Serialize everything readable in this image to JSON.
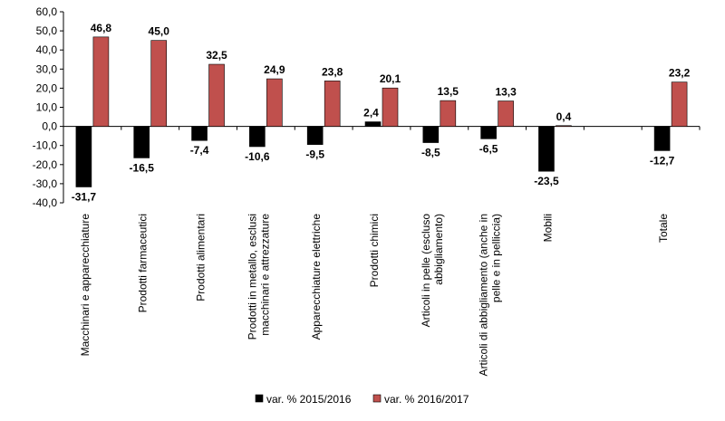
{
  "chart_data": {
    "type": "bar",
    "title": "",
    "xlabel": "",
    "ylabel": "",
    "ylim": [
      -40,
      60
    ],
    "yticks": [
      "60,0",
      "50,0",
      "40,0",
      "30,0",
      "20,0",
      "10,0",
      "0,0",
      "-10,0",
      "-20,0",
      "-30,0",
      "-40,0"
    ],
    "grid": false,
    "legend_position": "bottom",
    "categories": [
      "Macchinari e apparecchiature",
      "Prodotti farmaceutici",
      "Prodotti alimentari",
      "Prodotti in metallo, esclusi macchinari e attrezzature",
      "Apparecchiature elettriche",
      "Prodotti chimici",
      "Articoli in pelle (escluso abbigliamento)",
      "Articoli di abbigliamento (anche in pelle e in pelliccia)",
      "Mobili",
      "",
      "Totale"
    ],
    "series": [
      {
        "name": "var. % 2015/2016",
        "color": "#000000",
        "values": [
          -31.7,
          -16.5,
          -7.4,
          -10.6,
          -9.5,
          2.4,
          -8.5,
          -6.5,
          -23.5,
          null,
          -12.7
        ],
        "labels": [
          "-31,7",
          "-16,5",
          "-7,4",
          "-10,6",
          "-9,5",
          "2,4",
          "-8,5",
          "-6,5",
          "-23,5",
          "",
          "-12,7"
        ]
      },
      {
        "name": "var. % 2016/2017",
        "color": "#c0504d",
        "values": [
          46.8,
          45.0,
          32.5,
          24.9,
          23.8,
          20.1,
          13.5,
          13.3,
          0.4,
          null,
          23.2
        ],
        "labels": [
          "46,8",
          "45,0",
          "32,5",
          "24,9",
          "23,8",
          "20,1",
          "13,5",
          "13,3",
          "0,4",
          "",
          "23,2"
        ]
      }
    ]
  }
}
